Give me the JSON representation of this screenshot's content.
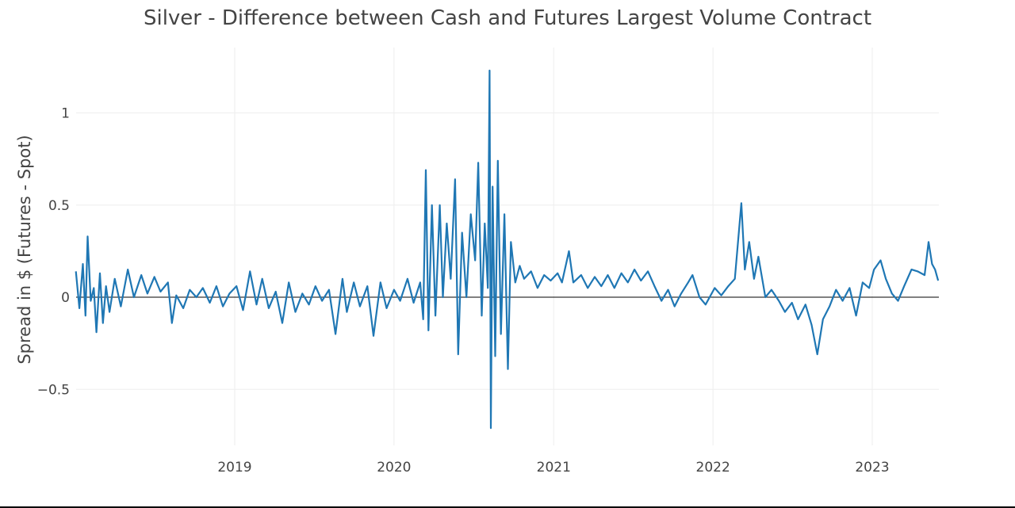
{
  "chart_data": {
    "type": "line",
    "title": "Silver - Difference between Cash and Futures Largest Volume Contract",
    "xlabel": "",
    "ylabel": "Spread in $ (Futures - Spot)",
    "xlim": [
      "2018-01-02",
      "2023-06-01"
    ],
    "ylim": [
      -0.72,
      1.25
    ],
    "x_ticks": [
      "2019",
      "2020",
      "2021",
      "2022",
      "2023"
    ],
    "y_ticks": [
      {
        "value": 1,
        "label": "1"
      },
      {
        "value": 0.5,
        "label": "0.5"
      },
      {
        "value": 0,
        "label": "0"
      },
      {
        "value": -0.5,
        "label": "−0.5"
      }
    ],
    "grid": true,
    "legend": "none",
    "series_color": "#1f77b4",
    "series": [
      {
        "points": [
          [
            "2018-01-02",
            0.14
          ],
          [
            "2018-01-10",
            -0.06
          ],
          [
            "2018-01-18",
            0.18
          ],
          [
            "2018-01-24",
            -0.1
          ],
          [
            "2018-01-29",
            0.33
          ],
          [
            "2018-02-05",
            -0.02
          ],
          [
            "2018-02-12",
            0.05
          ],
          [
            "2018-02-18",
            -0.19
          ],
          [
            "2018-02-26",
            0.13
          ],
          [
            "2018-03-05",
            -0.14
          ],
          [
            "2018-03-12",
            0.06
          ],
          [
            "2018-03-20",
            -0.08
          ],
          [
            "2018-04-01",
            0.1
          ],
          [
            "2018-04-15",
            -0.05
          ],
          [
            "2018-05-01",
            0.15
          ],
          [
            "2018-05-15",
            0.0
          ],
          [
            "2018-06-01",
            0.12
          ],
          [
            "2018-06-15",
            0.02
          ],
          [
            "2018-07-01",
            0.11
          ],
          [
            "2018-07-15",
            0.03
          ],
          [
            "2018-08-01",
            0.08
          ],
          [
            "2018-08-10",
            -0.14
          ],
          [
            "2018-08-20",
            0.01
          ],
          [
            "2018-09-05",
            -0.06
          ],
          [
            "2018-09-20",
            0.04
          ],
          [
            "2018-10-05",
            0.0
          ],
          [
            "2018-10-20",
            0.05
          ],
          [
            "2018-11-05",
            -0.03
          ],
          [
            "2018-11-20",
            0.06
          ],
          [
            "2018-12-05",
            -0.05
          ],
          [
            "2018-12-20",
            0.02
          ],
          [
            "2019-01-05",
            0.06
          ],
          [
            "2019-01-20",
            -0.07
          ],
          [
            "2019-02-05",
            0.14
          ],
          [
            "2019-02-20",
            -0.04
          ],
          [
            "2019-03-05",
            0.1
          ],
          [
            "2019-03-20",
            -0.06
          ],
          [
            "2019-04-05",
            0.03
          ],
          [
            "2019-04-20",
            -0.14
          ],
          [
            "2019-05-05",
            0.08
          ],
          [
            "2019-05-20",
            -0.08
          ],
          [
            "2019-06-05",
            0.02
          ],
          [
            "2019-06-20",
            -0.04
          ],
          [
            "2019-07-05",
            0.06
          ],
          [
            "2019-07-20",
            -0.02
          ],
          [
            "2019-08-05",
            0.04
          ],
          [
            "2019-08-20",
            -0.2
          ],
          [
            "2019-09-05",
            0.1
          ],
          [
            "2019-09-15",
            -0.08
          ],
          [
            "2019-10-01",
            0.08
          ],
          [
            "2019-10-15",
            -0.05
          ],
          [
            "2019-11-01",
            0.06
          ],
          [
            "2019-11-15",
            -0.21
          ],
          [
            "2019-12-01",
            0.08
          ],
          [
            "2019-12-15",
            -0.06
          ],
          [
            "2020-01-01",
            0.04
          ],
          [
            "2020-01-15",
            -0.02
          ],
          [
            "2020-02-01",
            0.1
          ],
          [
            "2020-02-15",
            -0.03
          ],
          [
            "2020-03-01",
            0.08
          ],
          [
            "2020-03-08",
            -0.12
          ],
          [
            "2020-03-14",
            0.69
          ],
          [
            "2020-03-20",
            -0.18
          ],
          [
            "2020-03-28",
            0.5
          ],
          [
            "2020-04-05",
            -0.1
          ],
          [
            "2020-04-15",
            0.5
          ],
          [
            "2020-04-22",
            0.0
          ],
          [
            "2020-05-01",
            0.4
          ],
          [
            "2020-05-10",
            0.1
          ],
          [
            "2020-05-20",
            0.64
          ],
          [
            "2020-05-27",
            -0.31
          ],
          [
            "2020-06-05",
            0.35
          ],
          [
            "2020-06-15",
            0.0
          ],
          [
            "2020-06-25",
            0.45
          ],
          [
            "2020-07-05",
            0.2
          ],
          [
            "2020-07-12",
            0.73
          ],
          [
            "2020-07-20",
            -0.1
          ],
          [
            "2020-07-27",
            0.4
          ],
          [
            "2020-08-03",
            0.05
          ],
          [
            "2020-08-07",
            1.23
          ],
          [
            "2020-08-10",
            -0.71
          ],
          [
            "2020-08-14",
            0.6
          ],
          [
            "2020-08-20",
            -0.32
          ],
          [
            "2020-08-26",
            0.74
          ],
          [
            "2020-09-02",
            -0.2
          ],
          [
            "2020-09-10",
            0.45
          ],
          [
            "2020-09-18",
            -0.39
          ],
          [
            "2020-09-25",
            0.3
          ],
          [
            "2020-10-05",
            0.08
          ],
          [
            "2020-10-15",
            0.17
          ],
          [
            "2020-10-25",
            0.1
          ],
          [
            "2020-11-10",
            0.14
          ],
          [
            "2020-11-25",
            0.05
          ],
          [
            "2020-12-10",
            0.12
          ],
          [
            "2020-12-25",
            0.09
          ],
          [
            "2021-01-10",
            0.13
          ],
          [
            "2021-01-20",
            0.08
          ],
          [
            "2021-02-05",
            0.25
          ],
          [
            "2021-02-15",
            0.08
          ],
          [
            "2021-03-05",
            0.12
          ],
          [
            "2021-03-20",
            0.05
          ],
          [
            "2021-04-05",
            0.11
          ],
          [
            "2021-04-20",
            0.06
          ],
          [
            "2021-05-05",
            0.12
          ],
          [
            "2021-05-20",
            0.05
          ],
          [
            "2021-06-05",
            0.13
          ],
          [
            "2021-06-20",
            0.08
          ],
          [
            "2021-07-05",
            0.15
          ],
          [
            "2021-07-20",
            0.09
          ],
          [
            "2021-08-05",
            0.14
          ],
          [
            "2021-08-20",
            0.06
          ],
          [
            "2021-09-05",
            -0.02
          ],
          [
            "2021-09-20",
            0.04
          ],
          [
            "2021-10-05",
            -0.05
          ],
          [
            "2021-10-20",
            0.02
          ],
          [
            "2021-11-05",
            0.08
          ],
          [
            "2021-11-15",
            0.12
          ],
          [
            "2021-12-01",
            0.0
          ],
          [
            "2021-12-15",
            -0.04
          ],
          [
            "2022-01-05",
            0.05
          ],
          [
            "2022-01-20",
            0.01
          ],
          [
            "2022-02-05",
            0.06
          ],
          [
            "2022-02-20",
            0.1
          ],
          [
            "2022-03-07",
            0.51
          ],
          [
            "2022-03-15",
            0.15
          ],
          [
            "2022-03-25",
            0.3
          ],
          [
            "2022-04-05",
            0.1
          ],
          [
            "2022-04-15",
            0.22
          ],
          [
            "2022-05-01",
            0.0
          ],
          [
            "2022-05-15",
            0.04
          ],
          [
            "2022-06-01",
            -0.02
          ],
          [
            "2022-06-15",
            -0.08
          ],
          [
            "2022-07-01",
            -0.03
          ],
          [
            "2022-07-15",
            -0.12
          ],
          [
            "2022-08-01",
            -0.04
          ],
          [
            "2022-08-15",
            -0.15
          ],
          [
            "2022-08-28",
            -0.31
          ],
          [
            "2022-09-10",
            -0.12
          ],
          [
            "2022-09-25",
            -0.05
          ],
          [
            "2022-10-10",
            0.04
          ],
          [
            "2022-10-25",
            -0.02
          ],
          [
            "2022-11-10",
            0.05
          ],
          [
            "2022-11-25",
            -0.1
          ],
          [
            "2022-12-10",
            0.08
          ],
          [
            "2022-12-25",
            0.05
          ],
          [
            "2023-01-05",
            0.15
          ],
          [
            "2023-01-20",
            0.2
          ],
          [
            "2023-02-01",
            0.1
          ],
          [
            "2023-02-15",
            0.02
          ],
          [
            "2023-03-01",
            -0.02
          ],
          [
            "2023-03-15",
            0.06
          ],
          [
            "2023-04-01",
            0.15
          ],
          [
            "2023-04-15",
            0.14
          ],
          [
            "2023-05-01",
            0.12
          ],
          [
            "2023-05-10",
            0.3
          ],
          [
            "2023-05-18",
            0.18
          ],
          [
            "2023-05-25",
            0.15
          ],
          [
            "2023-06-01",
            0.09
          ]
        ]
      }
    ]
  }
}
